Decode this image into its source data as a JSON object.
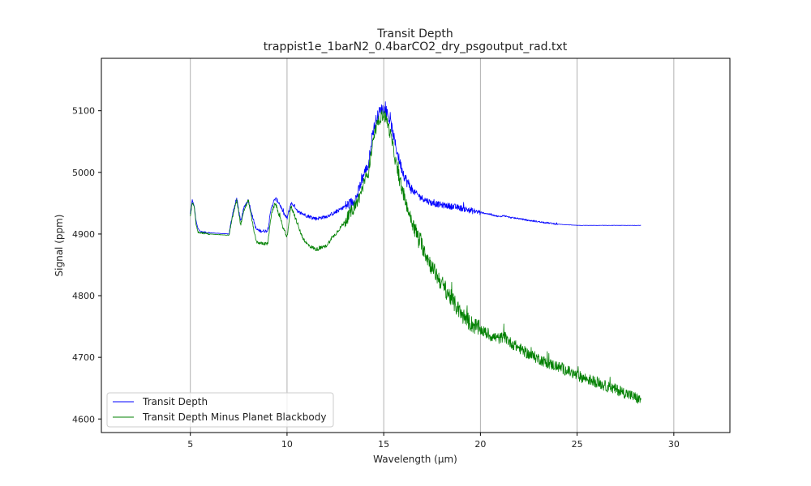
{
  "chart_data": {
    "type": "line",
    "title": "Transit Depth",
    "subtitle": "trappist1e_1barN2_0.4barCO2_dry_psgoutput_rad.txt",
    "xlabel": "Wavelength (µm)",
    "ylabel": "Signal (ppm)",
    "xlim": [
      0.4,
      32.9
    ],
    "ylim": [
      4578,
      5185
    ],
    "xticks": [
      "5",
      "10",
      "15",
      "20",
      "25",
      "30"
    ],
    "yticks": [
      "4600",
      "4700",
      "4800",
      "4900",
      "5000",
      "5100"
    ],
    "grid": "vertical",
    "legend_position": "bottom-left",
    "series": [
      {
        "name": "Transit Depth",
        "color": "#0000ff",
        "x": [
          5.0,
          5.1,
          5.2,
          5.3,
          5.4,
          5.6,
          6.0,
          6.5,
          7.0,
          7.2,
          7.4,
          7.6,
          7.8,
          8.0,
          8.2,
          8.4,
          8.6,
          9.0,
          9.2,
          9.4,
          9.6,
          9.8,
          10.0,
          10.2,
          10.4,
          10.6,
          10.8,
          11.0,
          11.2,
          11.5,
          12.0,
          12.5,
          13.0,
          13.3,
          13.6,
          13.8,
          14.0,
          14.2,
          14.4,
          14.6,
          14.8,
          15.0,
          15.2,
          15.4,
          15.6,
          15.8,
          16.0,
          16.2,
          16.5,
          17.0,
          17.5,
          18.0,
          18.5,
          19.0,
          19.5,
          20.0,
          20.5,
          21.0,
          21.2,
          21.5,
          22.0,
          22.5,
          23.0,
          23.5,
          24.0,
          24.5,
          25.0,
          26.0,
          27.0,
          28.0,
          28.3
        ],
        "y": [
          4932,
          4955,
          4945,
          4920,
          4908,
          4903,
          4902,
          4901,
          4900,
          4935,
          4958,
          4920,
          4945,
          4955,
          4930,
          4908,
          4905,
          4905,
          4945,
          4958,
          4950,
          4935,
          4925,
          4950,
          4945,
          4935,
          4933,
          4930,
          4928,
          4925,
          4928,
          4935,
          4945,
          4950,
          4960,
          4980,
          5000,
          5010,
          5060,
          5085,
          5100,
          5105,
          5095,
          5075,
          5045,
          5020,
          5000,
          4985,
          4970,
          4958,
          4950,
          4947,
          4945,
          4942,
          4938,
          4935,
          4932,
          4928,
          4930,
          4927,
          4925,
          4922,
          4920,
          4918,
          4916,
          4915,
          4914,
          4914,
          4914,
          4914,
          4914
        ]
      },
      {
        "name": "Transit Depth Minus Planet Blackbody",
        "color": "#008000",
        "x": [
          5.0,
          5.1,
          5.2,
          5.3,
          5.4,
          5.6,
          6.0,
          6.5,
          7.0,
          7.2,
          7.4,
          7.6,
          7.8,
          8.0,
          8.2,
          8.4,
          8.6,
          9.0,
          9.2,
          9.4,
          9.6,
          9.8,
          10.0,
          10.2,
          10.4,
          10.6,
          10.8,
          11.0,
          11.2,
          11.5,
          12.0,
          12.5,
          13.0,
          13.3,
          13.6,
          13.8,
          14.0,
          14.2,
          14.4,
          14.6,
          14.8,
          15.0,
          15.2,
          15.4,
          15.6,
          15.8,
          16.0,
          16.2,
          16.5,
          17.0,
          17.5,
          18.0,
          18.5,
          19.0,
          19.5,
          20.0,
          20.5,
          21.0,
          21.2,
          21.5,
          22.0,
          22.5,
          23.0,
          23.5,
          24.0,
          24.5,
          25.0,
          25.5,
          26.0,
          26.5,
          27.0,
          27.5,
          28.0,
          28.3
        ],
        "y": [
          4930,
          4950,
          4945,
          4915,
          4903,
          4902,
          4900,
          4899,
          4898,
          4930,
          4955,
          4915,
          4940,
          4955,
          4920,
          4888,
          4885,
          4884,
          4935,
          4950,
          4930,
          4910,
          4895,
          4945,
          4930,
          4910,
          4895,
          4885,
          4880,
          4875,
          4880,
          4900,
          4920,
          4935,
          4950,
          4965,
          4985,
          5000,
          5040,
          5070,
          5088,
          5095,
          5080,
          5055,
          5020,
          4990,
          4965,
          4945,
          4915,
          4880,
          4845,
          4820,
          4795,
          4770,
          4755,
          4745,
          4735,
          4730,
          4735,
          4725,
          4715,
          4705,
          4698,
          4690,
          4685,
          4678,
          4670,
          4665,
          4660,
          4653,
          4648,
          4642,
          4635,
          4630
        ]
      }
    ]
  }
}
